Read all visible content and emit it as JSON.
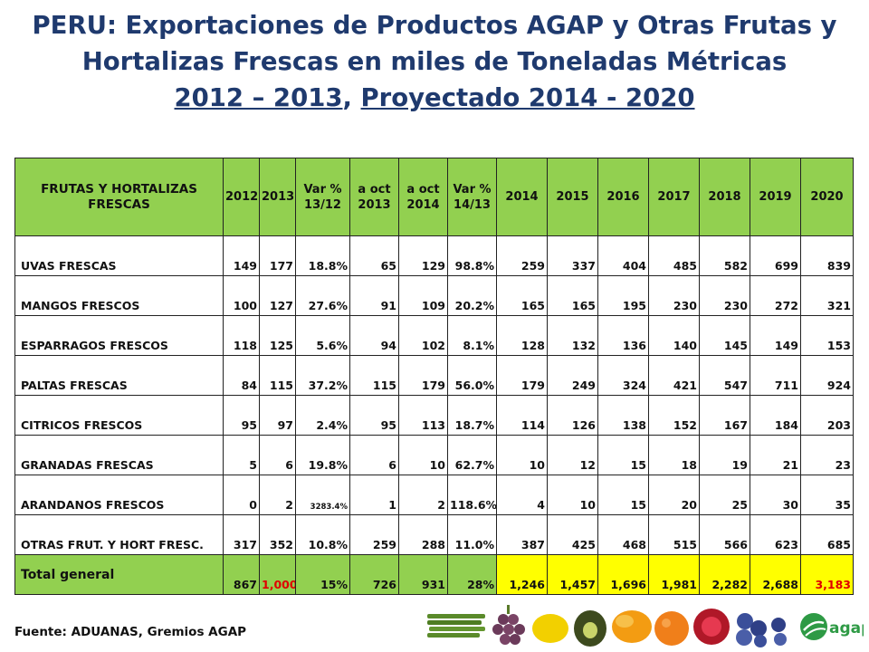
{
  "title": {
    "line1": "PERU: Exportaciones de Productos AGAP y Otras Frutas y",
    "line2": "Hortalizas Frescas en miles de Toneladas Métricas",
    "line3_a": "2012 – 2013",
    "line3_sep": ", ",
    "line3_b": "Proyectado 2014 - 2020"
  },
  "table": {
    "headers": [
      "FRUTAS Y HORTALIZAS FRESCAS",
      "2012",
      "2013",
      "Var % 13/12",
      "a oct 2013",
      "a oct 2014",
      "Var % 14/13",
      "2014",
      "2015",
      "2016",
      "2017",
      "2018",
      "2019",
      "2020"
    ],
    "rows": [
      [
        "UVAS FRESCAS",
        "149",
        "177",
        "18.8%",
        "65",
        "129",
        "98.8%",
        "259",
        "337",
        "404",
        "485",
        "582",
        "699",
        "839"
      ],
      [
        "MANGOS FRESCOS",
        "100",
        "127",
        "27.6%",
        "91",
        "109",
        "20.2%",
        "165",
        "165",
        "195",
        "230",
        "230",
        "272",
        "321"
      ],
      [
        "ESPARRAGOS FRESCOS",
        "118",
        "125",
        "5.6%",
        "94",
        "102",
        "8.1%",
        "128",
        "132",
        "136",
        "140",
        "145",
        "149",
        "153"
      ],
      [
        "PALTAS FRESCAS",
        "84",
        "115",
        "37.2%",
        "115",
        "179",
        "56.0%",
        "179",
        "249",
        "324",
        "421",
        "547",
        "711",
        "924"
      ],
      [
        "CITRICOS FRESCOS",
        "95",
        "97",
        "2.4%",
        "95",
        "113",
        "18.7%",
        "114",
        "126",
        "138",
        "152",
        "167",
        "184",
        "203"
      ],
      [
        "GRANADAS FRESCAS",
        "5",
        "6",
        "19.8%",
        "6",
        "10",
        "62.7%",
        "10",
        "12",
        "15",
        "18",
        "19",
        "21",
        "23"
      ],
      [
        "ARANDANOS  FRESCOS",
        "0",
        "2",
        "3283.4%",
        "1",
        "2",
        "118.6%",
        "4",
        "10",
        "15",
        "20",
        "25",
        "30",
        "35"
      ],
      [
        "OTRAS FRUT. Y HORT FRESC.",
        "317",
        "352",
        "10.8%",
        "259",
        "288",
        "11.0%",
        "387",
        "425",
        "468",
        "515",
        "566",
        "623",
        "685"
      ]
    ],
    "total": [
      "Total general",
      "867",
      "1,000",
      "15%",
      "726",
      "931",
      "28%",
      "1,246",
      "1,457",
      "1,696",
      "1,981",
      "2,282",
      "2,688",
      "3,183"
    ]
  },
  "footer": {
    "source": "Fuente: ADUANAS, Gremios AGAP"
  },
  "logo": {
    "text": "agap"
  },
  "colors": {
    "title": "#1f3a6e",
    "header_bg": "#92d050",
    "projection_bg": "#ffff00",
    "highlight": "#e00000"
  }
}
